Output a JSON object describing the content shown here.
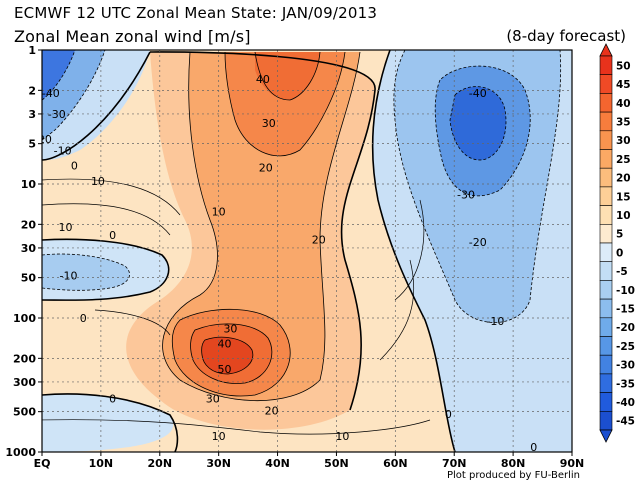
{
  "header": {
    "title": "ECMWF 12 UTC Zonal Mean State: JAN/09/2013",
    "subtitle": "Zonal Mean zonal wind [m/s]",
    "forecast_label": "(8-day forecast)"
  },
  "footer": {
    "credit": "Plot produced by FU-Berlin"
  },
  "chart_data": {
    "type": "heatmap",
    "x_ticks": [
      "EQ",
      "10N",
      "20N",
      "30N",
      "40N",
      "50N",
      "60N",
      "70N",
      "80N",
      "90N"
    ],
    "y_ticks": [
      "1",
      "2",
      "3",
      "5",
      "10",
      "20",
      "30",
      "50",
      "100",
      "200",
      "300",
      "500",
      "1000"
    ],
    "y_scale": "log",
    "ylim": [
      1000,
      1
    ],
    "xlim": [
      0,
      90
    ],
    "colorbar": {
      "labels": [
        "50",
        "45",
        "40",
        "35",
        "30",
        "25",
        "20",
        "15",
        "10",
        "5",
        "0",
        "-5",
        "-10",
        "-15",
        "-20",
        "-25",
        "-30",
        "-35",
        "-40",
        "-45"
      ],
      "colors": [
        "#e8321c",
        "#f04a26",
        "#f4652f",
        "#f77d3d",
        "#f9944f",
        "#fba964",
        "#fcbd7d",
        "#fdcf97",
        "#fee0b3",
        "#fdebd0",
        "#dcecf9",
        "#c3def5",
        "#a9cff1",
        "#8cbdee",
        "#6fabea",
        "#5797e6",
        "#4282e2",
        "#2f6de0",
        "#205bdd",
        "#1b4fd0"
      ]
    },
    "contour_labels": [
      {
        "text": "40",
        "x": 37.5,
        "p": 1.65
      },
      {
        "text": "30",
        "x": 38.5,
        "p": 3.5
      },
      {
        "text": "20",
        "x": 38,
        "p": 7.5
      },
      {
        "text": "10",
        "x": 30,
        "p": 16
      },
      {
        "text": "20",
        "x": 47,
        "p": 26
      },
      {
        "text": "10",
        "x": 9.5,
        "p": 9.5
      },
      {
        "text": "10",
        "x": 4,
        "p": 21
      },
      {
        "text": "0",
        "x": 12,
        "p": 24
      },
      {
        "text": "0",
        "x": 5.5,
        "p": 7.3
      },
      {
        "text": "-10",
        "x": 4.5,
        "p": 48
      },
      {
        "text": "-40",
        "x": 1.5,
        "p": 2.1
      },
      {
        "text": "-30",
        "x": 2.5,
        "p": 3
      },
      {
        "text": "20",
        "x": 0.5,
        "p": 4.6
      },
      {
        "text": "-10",
        "x": 3.5,
        "p": 5.6
      },
      {
        "text": "0",
        "x": 7,
        "p": 100
      },
      {
        "text": "30",
        "x": 32,
        "p": 120
      },
      {
        "text": "40",
        "x": 31,
        "p": 155
      },
      {
        "text": "50",
        "x": 31,
        "p": 240
      },
      {
        "text": "30",
        "x": 29,
        "p": 400
      },
      {
        "text": "20",
        "x": 39,
        "p": 490
      },
      {
        "text": "10",
        "x": 30,
        "p": 760
      },
      {
        "text": "10",
        "x": 51,
        "p": 760
      },
      {
        "text": "0",
        "x": 12,
        "p": 400
      },
      {
        "text": "0",
        "x": 69,
        "p": 520
      },
      {
        "text": "0",
        "x": 83.5,
        "p": 920
      },
      {
        "text": "-40",
        "x": 74,
        "p": 2.1
      },
      {
        "text": "-30",
        "x": 72,
        "p": 12
      },
      {
        "text": "-20",
        "x": 74,
        "p": 27
      },
      {
        "text": "-10",
        "x": 77,
        "p": 105
      }
    ]
  }
}
